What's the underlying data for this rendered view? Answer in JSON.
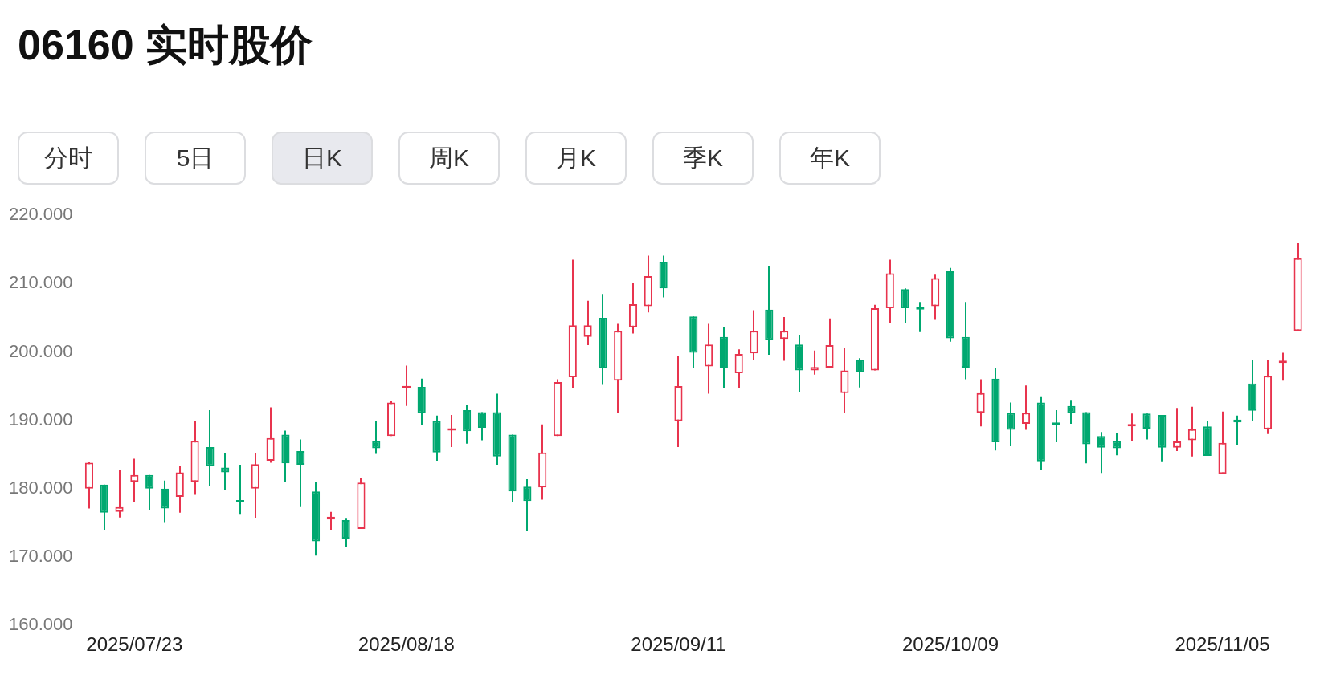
{
  "chart_data": {
    "type": "candlestick",
    "title": "06160 实时股价",
    "annotations": [
      "分时",
      "5日",
      "日K",
      "周K",
      "月K",
      "季K",
      "年K"
    ],
    "categories": [
      null,
      null,
      null,
      "2025/07/23",
      null,
      null,
      null,
      null,
      null,
      null,
      null,
      null,
      null,
      null,
      null,
      null,
      null,
      null,
      null,
      null,
      null,
      "2025/08/18",
      null,
      null,
      null,
      null,
      null,
      null,
      null,
      null,
      null,
      null,
      null,
      null,
      null,
      null,
      null,
      null,
      null,
      "2025/09/11",
      null,
      null,
      null,
      null,
      null,
      null,
      null,
      null,
      null,
      null,
      null,
      null,
      null,
      null,
      null,
      null,
      null,
      "2025/10/09",
      null,
      null,
      null,
      null,
      null,
      null,
      null,
      null,
      null,
      null,
      null,
      null,
      null,
      null,
      null,
      null,
      null,
      "2025/11/05",
      null,
      null,
      null,
      null,
      null
    ],
    "ohlc": [
      [
        180.0,
        183.9,
        177.1,
        183.8
      ],
      [
        180.6,
        180.6,
        174.0,
        176.5
      ],
      [
        176.6,
        182.7,
        175.8,
        177.3
      ],
      [
        181.0,
        184.4,
        178.0,
        182.0
      ],
      [
        182.0,
        182.0,
        176.9,
        180.0
      ],
      [
        180.0,
        181.2,
        175.1,
        177.1
      ],
      [
        178.8,
        183.3,
        176.5,
        182.4
      ],
      [
        181.0,
        189.9,
        179.1,
        187.0
      ],
      [
        186.1,
        191.5,
        180.4,
        183.3
      ],
      [
        183.1,
        185.2,
        179.8,
        182.4
      ],
      [
        178.3,
        183.5,
        176.2,
        178.0
      ],
      [
        180.0,
        185.2,
        175.7,
        183.6
      ],
      [
        184.1,
        191.9,
        183.8,
        187.4
      ],
      [
        187.9,
        188.5,
        181.0,
        183.7
      ],
      [
        185.5,
        187.2,
        177.3,
        183.5
      ],
      [
        179.6,
        181.0,
        170.2,
        172.3
      ],
      [
        175.5,
        176.6,
        174.0,
        175.9
      ],
      [
        175.4,
        175.6,
        171.4,
        172.7
      ],
      [
        174.1,
        181.6,
        174.1,
        180.9
      ],
      [
        187.0,
        189.9,
        185.1,
        185.9
      ],
      [
        187.7,
        192.8,
        187.7,
        192.6
      ],
      [
        194.7,
        198.0,
        192.1,
        194.8
      ],
      [
        194.9,
        196.1,
        189.3,
        191.1
      ],
      [
        189.9,
        190.7,
        184.1,
        185.3
      ],
      [
        188.5,
        190.8,
        186.1,
        188.6
      ],
      [
        191.5,
        192.3,
        186.6,
        188.4
      ],
      [
        191.2,
        191.2,
        187.1,
        188.9
      ],
      [
        191.2,
        193.9,
        183.5,
        184.7
      ],
      [
        187.9,
        187.9,
        178.1,
        179.6
      ],
      [
        180.3,
        181.4,
        173.8,
        178.2
      ],
      [
        180.2,
        189.4,
        178.4,
        185.3
      ],
      [
        187.7,
        196.0,
        187.7,
        195.6
      ],
      [
        196.3,
        213.5,
        194.7,
        203.9
      ],
      [
        202.2,
        207.5,
        201.0,
        203.9
      ],
      [
        205.0,
        208.5,
        195.2,
        197.6
      ],
      [
        195.8,
        204.1,
        191.1,
        203.1
      ],
      [
        203.6,
        210.1,
        202.7,
        207.0
      ],
      [
        206.7,
        214.1,
        205.8,
        211.1
      ],
      [
        213.2,
        214.1,
        208.0,
        209.3
      ],
      [
        189.9,
        199.4,
        186.1,
        195.0
      ],
      [
        205.2,
        205.2,
        197.6,
        199.9
      ],
      [
        197.9,
        204.1,
        193.9,
        201.1
      ],
      [
        202.2,
        203.6,
        194.7,
        197.6
      ],
      [
        196.9,
        200.4,
        194.7,
        199.7
      ],
      [
        199.8,
        206.1,
        198.9,
        203.1
      ],
      [
        206.2,
        212.5,
        199.6,
        201.8
      ],
      [
        201.9,
        205.1,
        198.7,
        203.1
      ],
      [
        201.1,
        202.4,
        194.1,
        197.3
      ],
      [
        197.3,
        200.2,
        196.7,
        197.8
      ],
      [
        197.7,
        204.9,
        197.7,
        201.0
      ],
      [
        194.0,
        200.6,
        191.1,
        197.3
      ],
      [
        198.9,
        199.1,
        194.8,
        197.0
      ],
      [
        197.3,
        206.9,
        197.3,
        206.4
      ],
      [
        206.4,
        213.5,
        204.2,
        211.5
      ],
      [
        209.2,
        209.3,
        204.2,
        206.4
      ],
      [
        206.6,
        207.3,
        202.9,
        206.2
      ],
      [
        206.7,
        211.3,
        204.7,
        210.8
      ],
      [
        211.8,
        212.3,
        201.5,
        202.0
      ],
      [
        202.2,
        207.3,
        196.0,
        197.7
      ],
      [
        191.1,
        196.0,
        189.1,
        194.0
      ],
      [
        196.1,
        197.7,
        185.6,
        186.8
      ],
      [
        191.1,
        192.6,
        186.2,
        188.6
      ],
      [
        189.5,
        195.1,
        188.6,
        191.1
      ],
      [
        192.6,
        193.4,
        182.7,
        184.0
      ],
      [
        189.7,
        191.5,
        186.8,
        189.3
      ],
      [
        192.1,
        193.0,
        189.5,
        191.1
      ],
      [
        191.2,
        191.2,
        183.7,
        186.5
      ],
      [
        187.7,
        188.3,
        182.3,
        186.0
      ],
      [
        187.0,
        188.2,
        184.9,
        185.9
      ],
      [
        189.1,
        191.0,
        187.0,
        189.4
      ],
      [
        191.0,
        191.0,
        187.2,
        188.8
      ],
      [
        190.8,
        190.8,
        184.0,
        186.0
      ],
      [
        186.0,
        191.8,
        185.5,
        186.9
      ],
      [
        187.1,
        192.0,
        184.7,
        188.7
      ],
      [
        189.1,
        189.9,
        184.8,
        184.8
      ],
      [
        182.2,
        191.3,
        182.2,
        186.7
      ],
      [
        190.1,
        190.7,
        186.4,
        189.7
      ],
      [
        195.4,
        198.9,
        189.9,
        191.4
      ],
      [
        188.7,
        198.9,
        188.0,
        196.5
      ],
      [
        198.4,
        199.9,
        195.8,
        198.5
      ],
      [
        203.1,
        215.9,
        203.1,
        213.7
      ]
    ],
    "colors": [
      "#e8344e",
      "#00a870",
      "#e8344e",
      "#e8344e",
      "#00a870",
      "#00a870",
      "#e8344e",
      "#e8344e",
      "#00a870",
      "#00a870",
      "#00a870",
      "#e8344e",
      "#e8344e",
      "#00a870",
      "#00a870",
      "#00a870",
      "#e8344e",
      "#00a870",
      "#e8344e",
      "#00a870",
      "#e8344e",
      "#e8344e",
      "#00a870",
      "#00a870",
      "#e8344e",
      "#00a870",
      "#00a870",
      "#00a870",
      "#00a870",
      "#00a870",
      "#e8344e",
      "#e8344e",
      "#e8344e",
      "#e8344e",
      "#00a870",
      "#e8344e",
      "#e8344e",
      "#e8344e",
      "#00a870",
      "#e8344e",
      "#00a870",
      "#e8344e",
      "#00a870",
      "#e8344e",
      "#e8344e",
      "#00a870",
      "#e8344e",
      "#00a870",
      "#e8344e",
      "#e8344e",
      "#e8344e",
      "#00a870",
      "#e8344e",
      "#e8344e",
      "#00a870",
      "#00a870",
      "#e8344e",
      "#00a870",
      "#00a870",
      "#e8344e",
      "#00a870",
      "#00a870",
      "#e8344e",
      "#00a870",
      "#00a870",
      "#00a870",
      "#00a870",
      "#00a870",
      "#00a870",
      "#e8344e",
      "#00a870",
      "#00a870",
      "#e8344e",
      "#e8344e",
      "#00a870",
      "#e8344e",
      "#00a870",
      "#00a870",
      "#e8344e",
      "#e8344e",
      "#e8344e"
    ],
    "ylim": [
      160,
      220
    ],
    "yticks": [
      {
        "value": 160,
        "label": "160.000"
      },
      {
        "value": 170,
        "label": "170.000"
      },
      {
        "value": 180,
        "label": "180.000"
      },
      {
        "value": 190,
        "label": "190.000"
      },
      {
        "value": 200,
        "label": "200.000"
      },
      {
        "value": 210,
        "label": "210.000"
      },
      {
        "value": 220,
        "label": "220.000"
      }
    ]
  }
}
